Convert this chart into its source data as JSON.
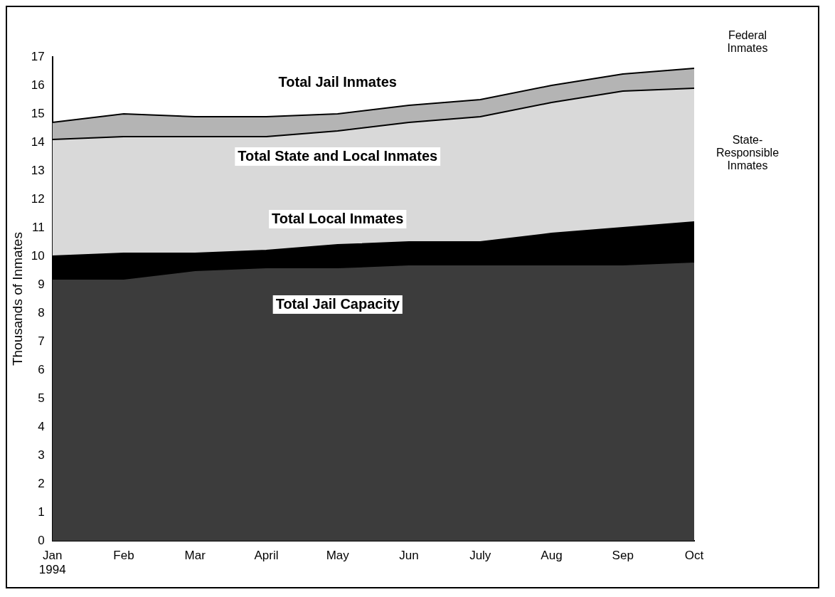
{
  "chart_data": {
    "type": "area",
    "ylabel": "Thousands of Inmates",
    "categories": [
      "Jan\n1994",
      "Feb",
      "Mar",
      "April",
      "May",
      "Jun",
      "July",
      "Aug",
      "Sep",
      "Oct"
    ],
    "series": [
      {
        "name": "Total Jail Inmates",
        "color": "#b4b4b4",
        "values": [
          14.7,
          15.0,
          14.9,
          14.9,
          15.0,
          15.3,
          15.5,
          16.0,
          16.4,
          16.6
        ]
      },
      {
        "name": "Total State and Local Inmates",
        "color": "#d9d9d9",
        "values": [
          14.1,
          14.2,
          14.2,
          14.2,
          14.4,
          14.7,
          14.9,
          15.4,
          15.8,
          15.9
        ]
      },
      {
        "name": "Total Local Inmates",
        "color": "#000000",
        "values": [
          10.0,
          10.1,
          10.1,
          10.2,
          10.4,
          10.5,
          10.5,
          10.8,
          11.0,
          11.2
        ]
      },
      {
        "name": "Total Jail Capacity",
        "color": "#3c3c3c",
        "values": [
          9.2,
          9.2,
          9.5,
          9.6,
          9.6,
          9.7,
          9.7,
          9.7,
          9.7,
          9.8
        ]
      }
    ],
    "ylim": [
      0,
      17
    ],
    "yticks": [
      0,
      1,
      2,
      3,
      4,
      5,
      6,
      7,
      8,
      9,
      10,
      11,
      12,
      13,
      14,
      15,
      16,
      17
    ],
    "annotations": [
      "Federal Inmates",
      "State-Responsible Inmates"
    ]
  }
}
